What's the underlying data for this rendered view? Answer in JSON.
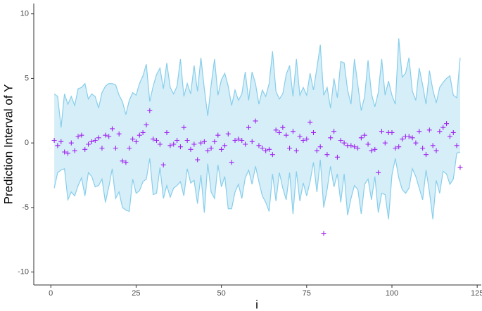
{
  "chart_data": {
    "type": "scatter",
    "x_label": "i",
    "y_label": "Prediction Interval of Y",
    "xlim": [
      -5,
      126.2
    ],
    "ylim": [
      -11,
      10.8
    ],
    "xticks": [
      0,
      25,
      50,
      75,
      100,
      125
    ],
    "yticks": [
      -10,
      -5,
      0,
      5,
      10
    ],
    "x": [
      1,
      2,
      3,
      4,
      5,
      6,
      7,
      8,
      9,
      10,
      11,
      12,
      13,
      14,
      15,
      16,
      17,
      18,
      19,
      20,
      21,
      22,
      23,
      24,
      25,
      26,
      27,
      28,
      29,
      30,
      31,
      32,
      33,
      34,
      35,
      36,
      37,
      38,
      39,
      40,
      41,
      42,
      43,
      44,
      45,
      46,
      47,
      48,
      49,
      50,
      51,
      52,
      53,
      54,
      55,
      56,
      57,
      58,
      59,
      60,
      61,
      62,
      63,
      64,
      65,
      66,
      67,
      68,
      69,
      70,
      71,
      72,
      73,
      74,
      75,
      76,
      77,
      78,
      79,
      80,
      81,
      82,
      83,
      84,
      85,
      86,
      87,
      88,
      89,
      90,
      91,
      92,
      93,
      94,
      95,
      96,
      97,
      98,
      99,
      100,
      101,
      102,
      103,
      104,
      105,
      106,
      107,
      108,
      109,
      110,
      111,
      112,
      113,
      114,
      115,
      116,
      117,
      118,
      119,
      120
    ],
    "series": [
      {
        "color": "#a020f0",
        "values": [
          0.2,
          -0.2,
          0.1,
          -0.7,
          -0.8,
          0.0,
          -0.6,
          0.5,
          0.6,
          -0.5,
          -0.1,
          0.1,
          0.2,
          0.4,
          -0.4,
          0.6,
          0.5,
          1.1,
          -0.4,
          0.7,
          -1.4,
          -1.5,
          -0.4,
          0.3,
          0.1,
          0.6,
          0.8,
          1.4,
          2.5,
          0.3,
          0.2,
          -0.1,
          -1.7,
          0.8,
          -0.2,
          -0.1,
          0.2,
          -0.3,
          1.2,
          0.2,
          -0.5,
          -0.1,
          -1.3,
          0.0,
          0.1,
          -0.6,
          -0.4,
          0.1,
          0.6,
          -0.5,
          -0.2,
          0.7,
          -1.5,
          0.2,
          0.3,
          0.2,
          -0.1,
          1.2,
          0.1,
          1.7,
          -0.2,
          -0.4,
          -0.6,
          -0.5,
          -0.9,
          1.0,
          0.8,
          1.2,
          0.6,
          -0.4,
          0.9,
          -0.6,
          0.5,
          0.2,
          0.3,
          1.6,
          0.8,
          -0.6,
          -0.3,
          -7.0,
          -0.9,
          0.4,
          0.9,
          -1.1,
          0.2,
          0.0,
          -0.2,
          -0.2,
          -0.3,
          -0.4,
          0.4,
          0.6,
          -0.1,
          -0.6,
          -0.5,
          -2.3,
          0.9,
          0.0,
          0.8,
          0.8,
          -0.4,
          -0.3,
          0.3,
          0.5,
          0.5,
          0.4,
          0.0,
          0.9,
          -0.4,
          -0.9,
          1.0,
          -0.2,
          -0.6,
          0.9,
          1.2,
          1.5,
          0.5,
          0.8,
          -0.2,
          -1.9
        ]
      }
    ],
    "band": {
      "color": "#87ceeb",
      "upper": [
        3.8,
        3.6,
        1.2,
        3.8,
        3.0,
        3.6,
        2.9,
        4.2,
        4.3,
        4.6,
        3.4,
        3.8,
        3.6,
        2.7,
        3.9,
        4.4,
        4.6,
        4.6,
        4.5,
        3.7,
        3.2,
        2.2,
        3.3,
        3.9,
        3.7,
        4.6,
        5.2,
        6.1,
        3.2,
        4.4,
        5.3,
        5.8,
        4.2,
        6.2,
        4.3,
        3.8,
        4.4,
        6.5,
        3.6,
        4.6,
        3.8,
        6.0,
        4.0,
        6.6,
        4.2,
        2.1,
        4.5,
        6.5,
        3.7,
        4.9,
        5.4,
        4.4,
        2.9,
        4.1,
        3.3,
        3.8,
        5.5,
        3.3,
        5.5,
        4.6,
        3.0,
        4.1,
        3.6,
        4.6,
        7.1,
        4.0,
        3.4,
        3.8,
        5.3,
        6.0,
        3.6,
        6.5,
        3.7,
        4.3,
        3.7,
        5.4,
        4.1,
        5.8,
        7.6,
        3.7,
        4.3,
        2.7,
        5.0,
        3.5,
        6.3,
        6.2,
        4.1,
        3.0,
        6.5,
        4.5,
        2.5,
        3.6,
        6.4,
        3.8,
        2.8,
        3.9,
        6.5,
        3.7,
        4.8,
        3.7,
        3.0,
        8.1,
        5.1,
        5.4,
        6.6,
        4.0,
        3.3,
        5.8,
        4.5,
        3.0,
        5.6,
        4.1,
        3.1,
        4.3,
        4.7,
        5.0,
        5.2,
        3.7,
        3.5,
        6.6
      ],
      "lower": [
        -3.5,
        -2.3,
        -2.1,
        -2.0,
        -4.4,
        -3.8,
        -4.1,
        -3.3,
        -2.7,
        -4.1,
        -2.3,
        -2.6,
        -3.4,
        -3.3,
        -2.8,
        -4.6,
        -3.4,
        -2.0,
        -4.3,
        -3.8,
        -5.0,
        -5.2,
        -5.3,
        -2.8,
        -3.9,
        -3.7,
        -3.0,
        -2.8,
        -1.2,
        -4.0,
        -3.9,
        -1.9,
        -4.3,
        -3.3,
        -4.2,
        -3.5,
        -3.3,
        -3.0,
        -4.1,
        -2.0,
        -3.1,
        -2.9,
        -4.7,
        -2.5,
        -5.4,
        -1.6,
        -3.8,
        -4.3,
        -1.7,
        -3.4,
        -2.6,
        -5.1,
        -5.1,
        -3.8,
        -3.2,
        -4.3,
        -2.7,
        -2.1,
        -3.2,
        -1.8,
        -3.0,
        -4.1,
        -4.6,
        -5.3,
        -2.4,
        -4.5,
        -2.3,
        -3.5,
        -4.4,
        -2.3,
        -5.5,
        -2.2,
        -4.5,
        -3.1,
        -4.1,
        -3.0,
        -1.5,
        -3.8,
        -1.3,
        -5.0,
        -3.6,
        -1.8,
        -3.4,
        -2.4,
        -4.6,
        -2.4,
        -5.6,
        -4.3,
        -3.3,
        -3.6,
        -5.5,
        -3.2,
        -2.8,
        -4.4,
        -2.6,
        -5.4,
        -3.9,
        -4.0,
        -5.9,
        -2.5,
        -1.2,
        -2.7,
        -3.6,
        -3.9,
        -3.5,
        -2.0,
        -2.6,
        -3.5,
        -4.4,
        -2.1,
        -3.8,
        -5.9,
        -2.9,
        -3.9,
        -2.2,
        -2.4,
        -3.2,
        -2.8,
        -0.8,
        -0.7
      ]
    }
  }
}
